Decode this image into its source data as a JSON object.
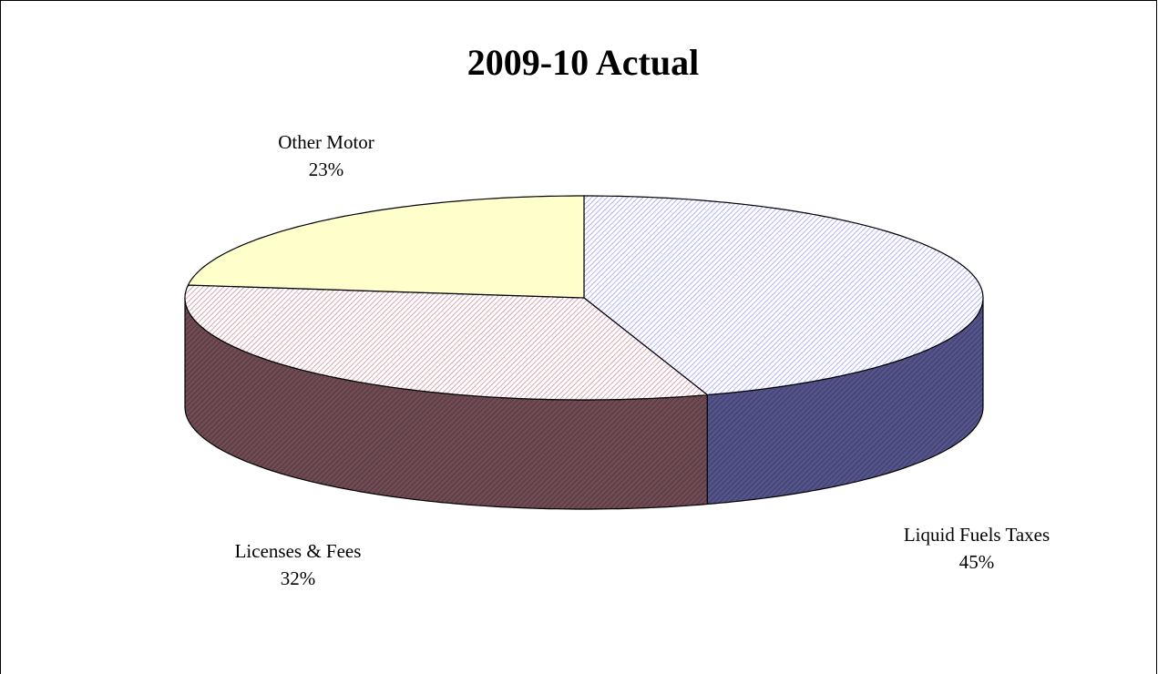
{
  "chart_data": {
    "type": "pie",
    "title": "2009-10 Actual",
    "categories": [
      "Liquid Fuels Taxes",
      "Licenses & Fees",
      "Other Motor"
    ],
    "values": [
      45,
      32,
      23
    ],
    "value_labels": [
      "45%",
      "32%",
      "23%"
    ],
    "colors": [
      "#9999ff",
      "#cc8899",
      "#ffffcc"
    ],
    "three_d": true
  }
}
